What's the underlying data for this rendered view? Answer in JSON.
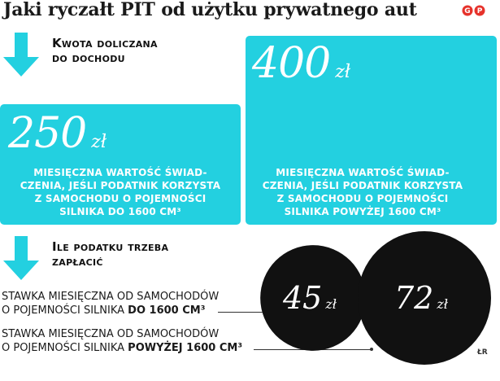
{
  "title": "Jaki ryczałt PIT od użytku prywatnego aut",
  "section1": {
    "line1": "Kwota doliczana",
    "line2": "do dochodu"
  },
  "section2": {
    "line1": "Ile podatku trzeba",
    "line2": "zapłacić"
  },
  "colors": {
    "accent": "#23d0e0",
    "circle": "#111111",
    "logo": "#e6322b"
  },
  "chart_data": [
    {
      "type": "bar",
      "categories": [
        "do 1600 cm³",
        "powyżej 1600 cm³"
      ],
      "values": [
        250,
        400
      ],
      "unit": "zł",
      "boxes": [
        {
          "amount": "250",
          "unit": "zł",
          "desc": [
            "MIESIĘCZNA WARTOŚĆ ŚWIAD-",
            "CZENIA, JEŚLI PODATNIK KORZYSTA",
            "Z SAMOCHODU O POJEMNOŚCI",
            "SILNIKA DO 1600 CM³"
          ]
        },
        {
          "amount": "400",
          "unit": "zł",
          "desc": [
            "MIESIĘCZNA WARTOŚĆ ŚWIAD-",
            "CZENIA, JEŚLI PODATNIK KORZYSTA",
            "Z SAMOCHODU O POJEMNOŚCI",
            "SILNIKA POWYŻEJ 1600 CM³"
          ]
        }
      ]
    },
    {
      "type": "bubble",
      "categories": [
        "do 1600 cm³",
        "powyżej 1600 cm³"
      ],
      "values": [
        45,
        72
      ],
      "unit": "zł",
      "labels": [
        {
          "line1": "STAWKA MIESIĘCZNA OD SAMOCHODÓW",
          "line2_prefix": "O POJEMNOŚCI SILNIKA ",
          "line2_bold": "DO 1600 CM³"
        },
        {
          "line1": "STAWKA MIESIĘCZNA OD SAMOCHODÓW",
          "line2_prefix": "O POJEMNOŚCI SILNIKA ",
          "line2_bold": "POWYŻEJ 1600 CM³"
        }
      ]
    }
  ],
  "credit": "ŁR"
}
